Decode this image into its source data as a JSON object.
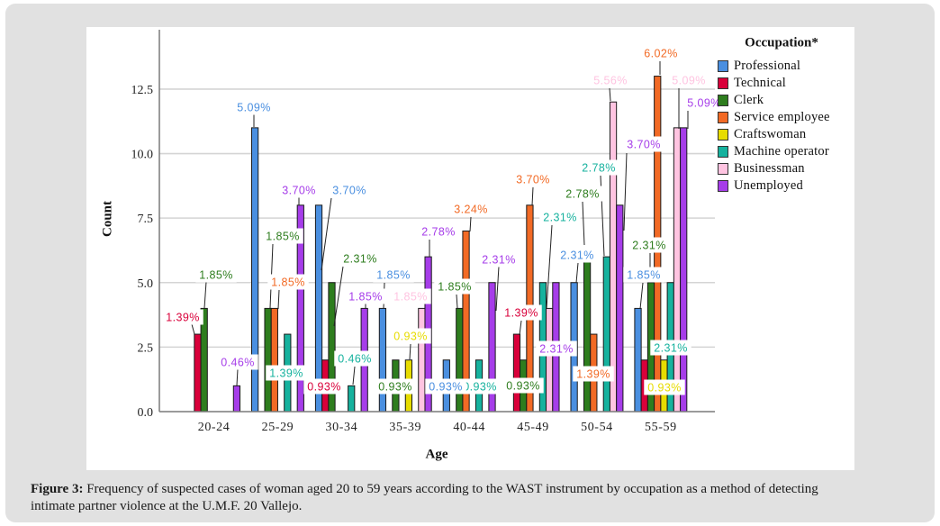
{
  "figure": {
    "caption_label": "Figure 3:",
    "caption_line1": "Frequency of suspected cases of woman aged 20 to 59 years according to the WAST instrument by occupation as a method of detecting",
    "caption_line2": "intimate partner violence at the U.M.F. 20 Vallejo."
  },
  "chart_data": {
    "type": "bar",
    "title": "",
    "xlabel": "Age",
    "ylabel": "Count",
    "ylim": [
      0,
      14.8
    ],
    "yticks": [
      0,
      2.5,
      5,
      7.5,
      10,
      12.5
    ],
    "ytick_labels": [
      "0.0",
      "2.5",
      "5.0",
      "7.5",
      "10.0",
      "12.5"
    ],
    "grid": true,
    "legend": {
      "title": "Occupation*",
      "placement": "right"
    },
    "categories": [
      "20-24",
      "25-29",
      "30-34",
      "35-39",
      "40-44",
      "45-49",
      "50-54",
      "55-59"
    ],
    "series": [
      {
        "name": "Professional",
        "color": "#4a8fe0",
        "values": [
          null,
          11,
          8,
          4,
          2,
          null,
          5,
          4
        ],
        "labels": [
          null,
          "5.09%",
          "3.70%",
          "1.85%",
          "0.93%",
          null,
          "2.31%",
          "1.85%"
        ]
      },
      {
        "name": "Technical",
        "color": "#d9003a",
        "values": [
          3,
          null,
          2,
          null,
          null,
          3,
          null,
          2
        ],
        "labels": [
          "1.39%",
          null,
          "0.93%",
          null,
          null,
          "1.39%",
          null,
          null
        ]
      },
      {
        "name": "Clerk",
        "color": "#2e7d1e",
        "values": [
          4,
          4,
          5,
          2,
          4,
          2,
          6,
          5
        ],
        "labels": [
          "1.85%",
          "1.85%",
          "2.31%",
          "0.93%",
          "1.85%",
          "0.93%",
          "2.78%",
          "2.31%"
        ]
      },
      {
        "name": "Service employee",
        "color": "#f26a25",
        "values": [
          null,
          4,
          null,
          null,
          7,
          8,
          3,
          13
        ],
        "labels": [
          null,
          "1.85%",
          null,
          null,
          "3.24%",
          "3.70%",
          "1.39%",
          "6.02%"
        ]
      },
      {
        "name": "Craftswoman",
        "color": "#e7dc00",
        "values": [
          null,
          null,
          null,
          2,
          null,
          null,
          null,
          2
        ],
        "labels": [
          null,
          null,
          null,
          "0.93%",
          null,
          null,
          null,
          "0.93%"
        ]
      },
      {
        "name": "Machine operator",
        "color": "#16b29e",
        "values": [
          null,
          3,
          1,
          null,
          2,
          5,
          6,
          5
        ],
        "labels": [
          null,
          "1.39%",
          "0.46%",
          null,
          "0.93%",
          "2.31%",
          "2.78%",
          "2.31%"
        ]
      },
      {
        "name": "Businessman",
        "color": "#ffc4e1",
        "values": [
          null,
          null,
          null,
          4,
          null,
          4,
          12,
          11
        ],
        "labels": [
          null,
          null,
          null,
          "1.85%",
          null,
          null,
          "5.56%",
          "5.09%"
        ]
      },
      {
        "name": "Unemployed",
        "color": "#a63de9",
        "values": [
          1,
          8,
          4,
          6,
          5,
          5,
          8,
          11
        ],
        "labels": [
          "0.46%",
          "3.70%",
          "1.85%",
          "2.78%",
          "2.31%",
          "2.31%",
          "3.70%",
          "5.09%"
        ]
      }
    ]
  }
}
